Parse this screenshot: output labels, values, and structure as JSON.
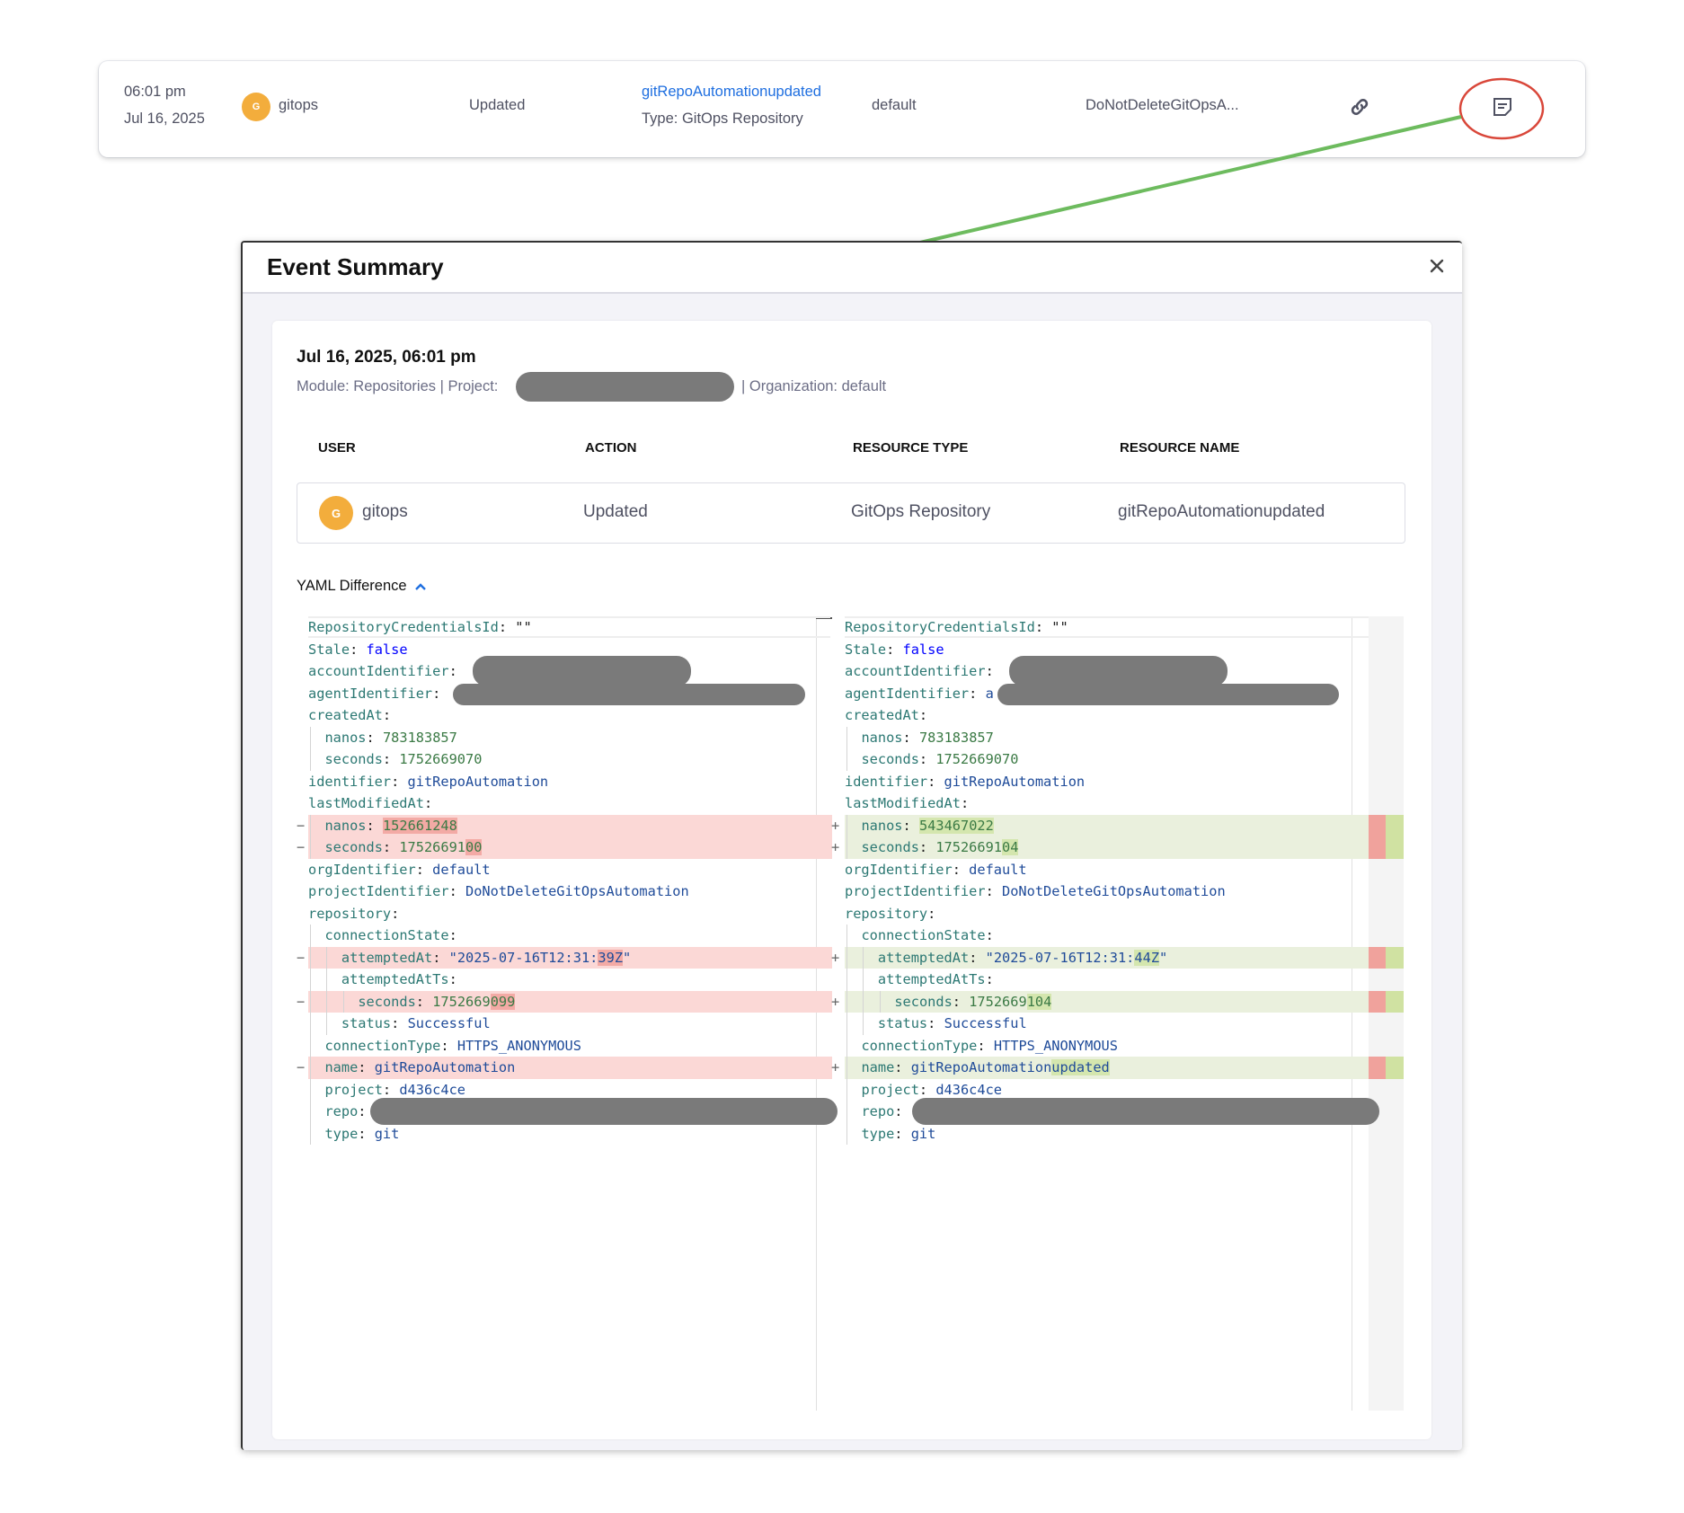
{
  "event_row": {
    "time": "06:01 pm",
    "date": "Jul 16, 2025",
    "user_initial": "G",
    "user": "gitops",
    "action": "Updated",
    "resource_link": "gitRepoAutomationupdated",
    "resource_type": "Type: GitOps Repository",
    "organization": "default",
    "project": "DoNotDeleteGitOpsA...",
    "link_icon": "link-icon",
    "summary_icon": "notes-icon"
  },
  "annotation": {
    "highlight_color": "#d9473a",
    "arrow_color": "#6dbb5e"
  },
  "modal": {
    "title": "Event Summary",
    "close_icon": "close-icon",
    "datetime": "Jul 16, 2025, 06:01 pm",
    "meta_module": "Module: Repositories | Project:",
    "meta_org": "| Organization: default",
    "table": {
      "headers": [
        "USER",
        "ACTION",
        "RESOURCE TYPE",
        "RESOURCE NAME"
      ],
      "row": {
        "user_initial": "G",
        "user": "gitops",
        "action": "Updated",
        "resource_type": "GitOps Repository",
        "resource_name": "gitRepoAutomationupdated"
      }
    },
    "yaml_toggle": "YAML Difference",
    "diff": {
      "colors": {
        "removed_line": "#fbd8d6",
        "removed_char": "#f3aaa5",
        "added_line": "#eaf0dd",
        "added_char": "#d4e6ae"
      },
      "left": [
        {
          "i": 0,
          "k": "RepositoryCredentialsId",
          "v": "\"\"",
          "t": "p"
        },
        {
          "i": 0,
          "k": "Stale",
          "v": "false",
          "t": "b"
        },
        {
          "i": 0,
          "k": "accountIdentifier",
          "v": "",
          "t": "v",
          "redacted": true
        },
        {
          "i": 0,
          "k": "agentIdentifier",
          "v": "",
          "t": "v",
          "redacted": true
        },
        {
          "i": 0,
          "k": "createdAt",
          "v": "",
          "t": "v"
        },
        {
          "i": 1,
          "k": "nanos",
          "v": "783183857",
          "t": "n"
        },
        {
          "i": 1,
          "k": "seconds",
          "v": "1752669070",
          "t": "n"
        },
        {
          "i": 0,
          "k": "identifier",
          "v": "gitRepoAutomation",
          "t": "v"
        },
        {
          "i": 0,
          "k": "lastModifiedAt",
          "v": "",
          "t": "v"
        },
        {
          "i": 1,
          "k": "nanos",
          "v": "",
          "c": "152661248",
          "t": "n",
          "d": "-"
        },
        {
          "i": 1,
          "k": "seconds",
          "v": "17526691",
          "c": "00",
          "t": "n",
          "d": "-"
        },
        {
          "i": 0,
          "k": "orgIdentifier",
          "v": "default",
          "t": "v"
        },
        {
          "i": 0,
          "k": "projectIdentifier",
          "v": "DoNotDeleteGitOpsAutomation",
          "t": "v"
        },
        {
          "i": 0,
          "k": "repository",
          "v": "",
          "t": "v"
        },
        {
          "i": 1,
          "k": "connectionState",
          "v": "",
          "t": "v"
        },
        {
          "i": 2,
          "k": "attemptedAt",
          "v": "\"2025-07-16T12:31:",
          "c": "39Z",
          "post": "\"",
          "t": "v",
          "d": "-"
        },
        {
          "i": 2,
          "k": "attemptedAtTs",
          "v": "",
          "t": "v"
        },
        {
          "i": 3,
          "k": "seconds",
          "v": "1752669",
          "c": "099",
          "t": "n",
          "d": "-"
        },
        {
          "i": 2,
          "k": "status",
          "v": "Successful",
          "t": "v"
        },
        {
          "i": 1,
          "k": "connectionType",
          "v": "HTTPS_ANONYMOUS",
          "t": "v"
        },
        {
          "i": 1,
          "k": "name",
          "v": "gitRepoAutomation",
          "t": "v",
          "d": "-"
        },
        {
          "i": 1,
          "k": "project",
          "v": "d436c4ce",
          "t": "v"
        },
        {
          "i": 1,
          "k": "repo",
          "v": "",
          "t": "v",
          "redacted": true
        },
        {
          "i": 1,
          "k": "type",
          "v": "git",
          "t": "v"
        }
      ],
      "right": [
        {
          "i": 0,
          "k": "RepositoryCredentialsId",
          "v": "\"\"",
          "t": "p"
        },
        {
          "i": 0,
          "k": "Stale",
          "v": "false",
          "t": "b"
        },
        {
          "i": 0,
          "k": "accountIdentifier",
          "v": "",
          "t": "v",
          "redacted": true
        },
        {
          "i": 0,
          "k": "agentIdentifier",
          "v": "a",
          "t": "v",
          "redacted": true
        },
        {
          "i": 0,
          "k": "createdAt",
          "v": "",
          "t": "v"
        },
        {
          "i": 1,
          "k": "nanos",
          "v": "783183857",
          "t": "n"
        },
        {
          "i": 1,
          "k": "seconds",
          "v": "1752669070",
          "t": "n"
        },
        {
          "i": 0,
          "k": "identifier",
          "v": "gitRepoAutomation",
          "t": "v"
        },
        {
          "i": 0,
          "k": "lastModifiedAt",
          "v": "",
          "t": "v"
        },
        {
          "i": 1,
          "k": "nanos",
          "v": "",
          "c": "543467022",
          "t": "n",
          "d": "+"
        },
        {
          "i": 1,
          "k": "seconds",
          "v": "17526691",
          "c": "04",
          "t": "n",
          "d": "+"
        },
        {
          "i": 0,
          "k": "orgIdentifier",
          "v": "default",
          "t": "v"
        },
        {
          "i": 0,
          "k": "projectIdentifier",
          "v": "DoNotDeleteGitOpsAutomation",
          "t": "v"
        },
        {
          "i": 0,
          "k": "repository",
          "v": "",
          "t": "v"
        },
        {
          "i": 1,
          "k": "connectionState",
          "v": "",
          "t": "v"
        },
        {
          "i": 2,
          "k": "attemptedAt",
          "v": "\"2025-07-16T12:31:",
          "c": "44Z",
          "post": "\"",
          "t": "v",
          "d": "+"
        },
        {
          "i": 2,
          "k": "attemptedAtTs",
          "v": "",
          "t": "v"
        },
        {
          "i": 3,
          "k": "seconds",
          "v": "1752669",
          "c": "104",
          "t": "n",
          "d": "+"
        },
        {
          "i": 2,
          "k": "status",
          "v": "Successful",
          "t": "v"
        },
        {
          "i": 1,
          "k": "connectionType",
          "v": "HTTPS_ANONYMOUS",
          "t": "v"
        },
        {
          "i": 1,
          "k": "name",
          "v": "gitRepoAutomation",
          "c": "updated",
          "t": "v",
          "d": "+"
        },
        {
          "i": 1,
          "k": "project",
          "v": "d436c4ce",
          "t": "v"
        },
        {
          "i": 1,
          "k": "repo",
          "v": "",
          "t": "v",
          "redacted": true
        },
        {
          "i": 1,
          "k": "type",
          "v": "git",
          "t": "v"
        }
      ]
    }
  }
}
